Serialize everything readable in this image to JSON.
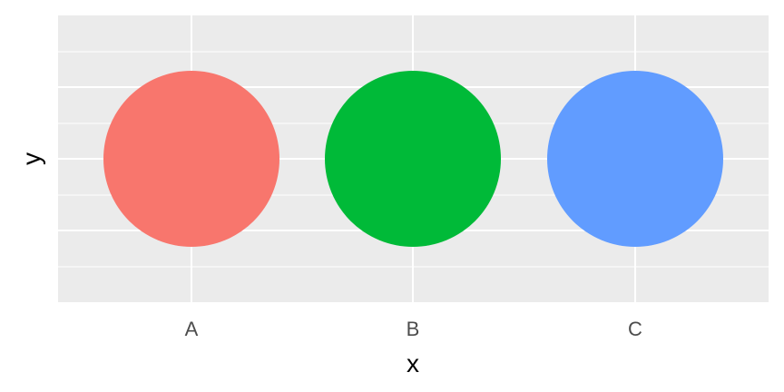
{
  "chart_data": {
    "type": "scatter",
    "categories": [
      "A",
      "B",
      "C"
    ],
    "y": [
      0,
      0,
      0
    ],
    "point_colors": [
      "#f8766d",
      "#00ba38",
      "#619cff"
    ],
    "xlabel": "x",
    "ylabel": "y",
    "ylim": [
      -0.05,
      0.05
    ],
    "panel_background": "#ebebeb",
    "grid_color": "#ffffff",
    "grid": true,
    "legend": "none"
  }
}
